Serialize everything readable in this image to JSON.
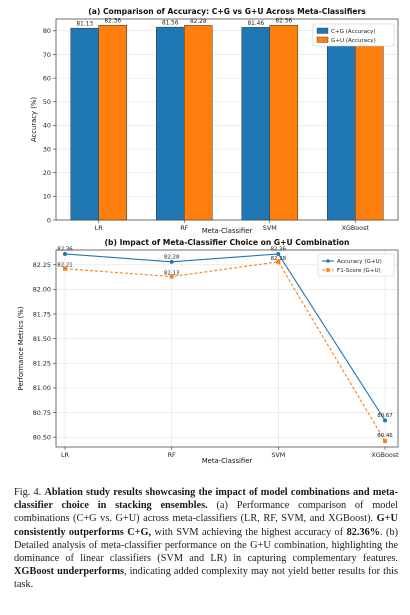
{
  "chart_data": [
    {
      "type": "bar",
      "title": "(a) Comparison of Accuracy: C+G vs G+U Across Meta-Classifiers",
      "xlabel": "Meta-Classifier",
      "ylabel": "Accuracy (%)",
      "ylim": [
        0,
        85
      ],
      "yticks": [
        0,
        10,
        20,
        30,
        40,
        50,
        60,
        70,
        80
      ],
      "categories": [
        "LR",
        "RF",
        "SVM",
        "XGBoost"
      ],
      "series": [
        {
          "name": "C+G (Accuracy)",
          "color": "#1f77b4",
          "values": [
            81.13,
            81.56,
            81.46,
            80.3
          ],
          "labels": [
            "81.13",
            "81.56",
            "81.46",
            ""
          ]
        },
        {
          "name": "G+U (Accuracy)",
          "color": "#ff7f0e",
          "values": [
            82.36,
            82.28,
            82.36,
            80.67
          ],
          "labels": [
            "82.36",
            "82.28",
            "82.36",
            ""
          ]
        }
      ],
      "legend": "top-right",
      "grid": true
    },
    {
      "type": "line",
      "title": "(b) Impact of Meta-Classifier Choice on G+U Combination",
      "xlabel": "Meta-Classifier",
      "ylabel": "Performance Metrics (%)",
      "ylim": [
        80.4,
        82.4
      ],
      "yticks": [
        "80.50",
        "80.75",
        "81.00",
        "81.25",
        "81.50",
        "81.75",
        "82.00",
        "82.25"
      ],
      "categories": [
        "LR",
        "RF",
        "SVM",
        "XGBoost"
      ],
      "series": [
        {
          "name": "Accuracy (G+U)",
          "color": "#1f77b4",
          "style": "solid",
          "values": [
            82.36,
            82.28,
            82.36,
            80.67
          ],
          "labels": [
            "82.36",
            "82.28",
            "82.36",
            "80.67"
          ]
        },
        {
          "name": "F1-Score (G+U)",
          "color": "#ff7f0e",
          "style": "dashed",
          "values": [
            82.21,
            82.13,
            82.28,
            80.46
          ],
          "labels": [
            "82.21",
            "82.13",
            "82.28",
            "80.46"
          ]
        }
      ],
      "legend": "top-right",
      "grid": true
    }
  ],
  "caption": {
    "fig": "Fig. 4.",
    "bold1": "Ablation study results showcasing the impact of model combinations and meta-classifier choice in stacking ensembles.",
    "t1": "(a) Performance comparison of model combinations (C+G vs. G+U) across meta-classifiers (LR, RF, SVM, and XGBoost).",
    "bold2": "G+U consistently outperforms C+G,",
    "t2": "with SVM achieving the highest accuracy of",
    "bold3": "82.36%",
    "t3": ". (b) Detailed analysis of meta-classifier performance on the G+U combination, highlighting the dominance of linear classifiers (SVM and LR) in capturing complementary features.",
    "bold4": "XGBoost underperforms",
    "t4": ", indicating added complexity may not yield better results for this task."
  }
}
